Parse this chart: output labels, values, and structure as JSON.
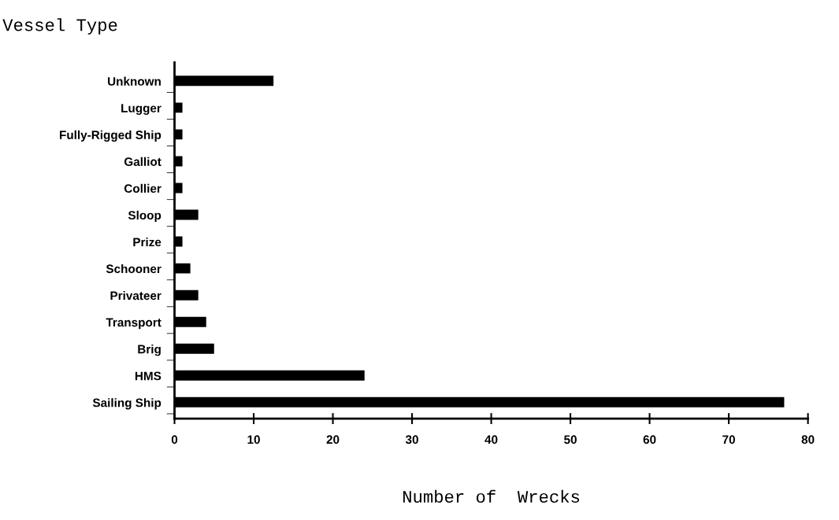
{
  "chart_data": {
    "type": "bar",
    "orientation": "horizontal",
    "ylabel": "Vessel Type",
    "xlabel": "Number of  Wrecks",
    "categories": [
      "Unknown",
      "Lugger",
      "Fully-Rigged Ship",
      "Galliot",
      "Collier",
      "Sloop",
      "Prize",
      "Schooner",
      "Privateer",
      "Transport",
      "Brig",
      "HMS",
      "Sailing Ship"
    ],
    "values": [
      12.5,
      1,
      1,
      1,
      1,
      3,
      1,
      2,
      3,
      4,
      5,
      24,
      77
    ],
    "color": "#000000",
    "xlim": [
      0,
      80
    ],
    "xticks": [
      0,
      10,
      20,
      30,
      40,
      50,
      60,
      70,
      80
    ],
    "grid": false,
    "legend": false
  }
}
